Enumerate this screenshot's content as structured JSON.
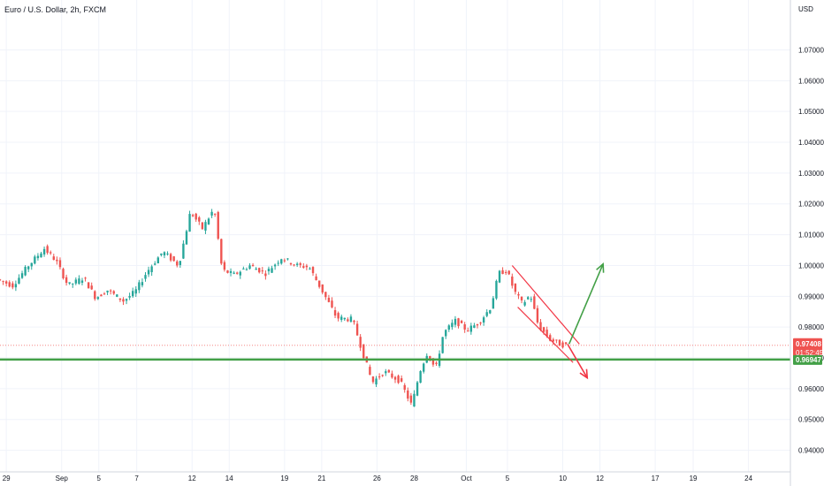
{
  "header": {
    "title": "Euro / U.S. Dollar, 2h, FXCM",
    "currency": "USD"
  },
  "chart_data": {
    "type": "candlestick",
    "title": "Euro / U.S. Dollar, 2h, FXCM",
    "ylabel": "USD",
    "ylim": [
      0.933,
      1.0862
    ],
    "xlim": [
      0,
      100
    ],
    "grid": true,
    "y_ticks": [
      "1.07000",
      "1.06000",
      "1.05000",
      "1.04000",
      "1.03000",
      "1.02000",
      "1.01000",
      "1.00000",
      "0.99000",
      "0.98000",
      "0.97000",
      "0.96000",
      "0.95000",
      "0.94000"
    ],
    "y_tick_values": [
      1.07,
      1.06,
      1.05,
      1.04,
      1.03,
      1.02,
      1.01,
      1.0,
      0.99,
      0.98,
      0.97,
      0.96,
      0.95,
      0.94
    ],
    "x_ticks": [
      {
        "label": "29",
        "t": 0.8
      },
      {
        "label": "Sep",
        "t": 7.8
      },
      {
        "label": "5",
        "t": 12.5
      },
      {
        "label": "7",
        "t": 17.3
      },
      {
        "label": "12",
        "t": 24.3
      },
      {
        "label": "14",
        "t": 29.0
      },
      {
        "label": "19",
        "t": 36.0
      },
      {
        "label": "21",
        "t": 40.7
      },
      {
        "label": "26",
        "t": 47.7
      },
      {
        "label": "28",
        "t": 52.4
      },
      {
        "label": "Oct",
        "t": 59.0
      },
      {
        "label": "5",
        "t": 64.2
      },
      {
        "label": "10",
        "t": 71.2
      },
      {
        "label": "12",
        "t": 75.9
      },
      {
        "label": "17",
        "t": 82.9
      },
      {
        "label": "19",
        "t": 87.7
      },
      {
        "label": "24",
        "t": 94.7
      }
    ],
    "price_path": [
      [
        0,
        0.9955
      ],
      [
        2,
        0.9935
      ],
      [
        4,
        1.0
      ],
      [
        6,
        1.0055
      ],
      [
        7.5,
        1.0015
      ],
      [
        9,
        0.9935
      ],
      [
        11,
        0.996
      ],
      [
        12.5,
        0.9895
      ],
      [
        14,
        0.992
      ],
      [
        16,
        0.9885
      ],
      [
        17.5,
        0.9915
      ],
      [
        19,
        0.998
      ],
      [
        21,
        1.0045
      ],
      [
        23,
        1.0
      ],
      [
        24.5,
        1.0175
      ],
      [
        26,
        1.012
      ],
      [
        27.5,
        1.0185
      ],
      [
        28.5,
        0.9985
      ],
      [
        30,
        0.997
      ],
      [
        32,
        1.0
      ],
      [
        34,
        0.9975
      ],
      [
        36,
        1.0025
      ],
      [
        38,
        1.0
      ],
      [
        39.5,
        0.9995
      ],
      [
        41,
        0.9925
      ],
      [
        43,
        0.983
      ],
      [
        45,
        0.9825
      ],
      [
        46.5,
        0.97
      ],
      [
        47.5,
        0.962
      ],
      [
        49,
        0.9655
      ],
      [
        51,
        0.9625
      ],
      [
        52.5,
        0.9545
      ],
      [
        53.5,
        0.9655
      ],
      [
        54.5,
        0.972
      ],
      [
        55.5,
        0.966
      ],
      [
        56.5,
        0.978
      ],
      [
        58,
        0.982
      ],
      [
        59.5,
        0.979
      ],
      [
        61,
        0.9815
      ],
      [
        62.5,
        0.9865
      ],
      [
        63.5,
        0.9975
      ],
      [
        64.5,
        0.9985
      ],
      [
        65.5,
        0.9915
      ],
      [
        66.5,
        0.9875
      ],
      [
        67.5,
        0.9905
      ],
      [
        68.5,
        0.9805
      ],
      [
        70,
        0.976
      ],
      [
        71.2,
        0.9745
      ],
      [
        71.8,
        0.9741
      ]
    ],
    "current_price": {
      "value": 0.97408,
      "label": "0.97408",
      "countdown": "01:52:45",
      "color": "#ef5350"
    },
    "support_line": {
      "value": 0.96947,
      "label": "0.96947",
      "color": "#43a047"
    },
    "annotations": {
      "channel_upper": [
        [
          64.8,
          1.0
        ],
        [
          73.3,
          0.9745
        ]
      ],
      "channel_lower": [
        [
          65.5,
          0.9865
        ],
        [
          72.5,
          0.9685
        ]
      ],
      "arrow_down": {
        "from": [
          71.8,
          0.9745
        ],
        "to": [
          74.3,
          0.9635
        ],
        "color": "#f23645"
      },
      "arrow_up": {
        "from": [
          72.0,
          0.9745
        ],
        "to": [
          76.3,
          1.0005
        ],
        "color": "#43a047"
      },
      "channel_color": "#f23645"
    },
    "colors": {
      "up": "#26a69a",
      "down": "#ef5350",
      "grid": "#f0f3fa",
      "axis_border": "#d1d4dc"
    }
  }
}
